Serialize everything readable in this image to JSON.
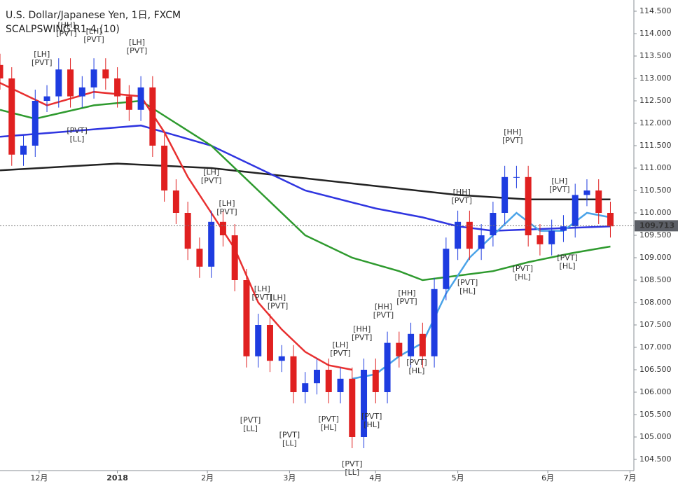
{
  "chart_data": {
    "type": "candlestick",
    "title": "U.S. Dollar/Japanese Yen, 1日, FXCM",
    "subtitle": "SCALPSWING R1-4 (10)",
    "up_color": "#1e3ce0",
    "down_color": "#e02020",
    "grid": true,
    "xlim": [
      0,
      162
    ],
    "xticks": [
      {
        "value": 10,
        "label": "12月"
      },
      {
        "value": 30,
        "label": "2018"
      },
      {
        "value": 53,
        "label": "2月"
      },
      {
        "value": 74,
        "label": "3月"
      },
      {
        "value": 96,
        "label": "4月"
      },
      {
        "value": 117,
        "label": "5月"
      },
      {
        "value": 140,
        "label": "6月"
      },
      {
        "value": 161,
        "label": "7月"
      }
    ],
    "ylim": [
      104.25,
      114.75
    ],
    "yticks": [
      {
        "value": 104.5,
        "label": "104.500"
      },
      {
        "value": 105,
        "label": "105.000"
      },
      {
        "value": 105.5,
        "label": "105.500"
      },
      {
        "value": 106,
        "label": "106.000"
      },
      {
        "value": 106.5,
        "label": "106.500"
      },
      {
        "value": 107,
        "label": "107.000"
      },
      {
        "value": 107.5,
        "label": "107.500"
      },
      {
        "value": 108,
        "label": "108.000"
      },
      {
        "value": 108.5,
        "label": "108.500"
      },
      {
        "value": 109,
        "label": "109.000"
      },
      {
        "value": 109.5,
        "label": "109.500"
      },
      {
        "value": 110,
        "label": "110.000"
      },
      {
        "value": 110.5,
        "label": "110.500"
      },
      {
        "value": 111,
        "label": "111.000"
      },
      {
        "value": 111.5,
        "label": "111.500"
      },
      {
        "value": 112,
        "label": "112.000"
      },
      {
        "value": 112.5,
        "label": "112.500"
      },
      {
        "value": 113,
        "label": "113.000"
      },
      {
        "value": 113.5,
        "label": "113.500"
      },
      {
        "value": 114,
        "label": "114.000"
      },
      {
        "value": 114.5,
        "label": "114.500"
      }
    ],
    "last_price": {
      "value": 109.713,
      "label": "109.713"
    },
    "candles": {
      "x": [
        0,
        3,
        6,
        9,
        12,
        15,
        18,
        21,
        24,
        27,
        30,
        33,
        36,
        39,
        42,
        45,
        48,
        51,
        54,
        57,
        60,
        63,
        66,
        69,
        72,
        75,
        78,
        81,
        84,
        87,
        90,
        93,
        96,
        99,
        102,
        105,
        108,
        111,
        114,
        117,
        120,
        123,
        126,
        129,
        132,
        135,
        138,
        141,
        144,
        147,
        150,
        153,
        156
      ],
      "open": [
        113.3,
        113.0,
        111.3,
        111.5,
        112.5,
        112.6,
        113.2,
        112.6,
        112.8,
        113.2,
        113.0,
        112.6,
        112.3,
        112.8,
        111.5,
        110.5,
        110.0,
        109.2,
        108.8,
        109.8,
        109.5,
        108.5,
        106.8,
        107.5,
        106.7,
        106.8,
        106.0,
        106.2,
        106.5,
        106.0,
        106.3,
        105.0,
        106.5,
        106.0,
        107.1,
        106.8,
        107.3,
        106.8,
        108.3,
        109.2,
        109.8,
        109.2,
        109.5,
        110.0,
        110.8,
        110.8,
        109.5,
        109.3,
        109.6,
        109.7,
        110.4,
        110.5,
        110.0
      ],
      "high": [
        113.55,
        113.25,
        111.75,
        112.75,
        112.85,
        113.45,
        113.45,
        113.05,
        113.45,
        113.45,
        113.25,
        112.85,
        113.05,
        113.05,
        111.75,
        110.75,
        110.25,
        109.45,
        110.05,
        110.05,
        109.75,
        108.75,
        107.75,
        107.75,
        107.05,
        107.05,
        106.45,
        106.75,
        106.75,
        106.55,
        106.55,
        106.75,
        106.75,
        107.35,
        107.35,
        107.55,
        107.55,
        108.55,
        109.45,
        110.05,
        110.05,
        109.75,
        110.25,
        111.05,
        111.05,
        111.05,
        109.75,
        109.85,
        109.95,
        110.65,
        110.75,
        110.75,
        110.25
      ],
      "low": [
        112.75,
        111.05,
        111.05,
        111.25,
        112.25,
        112.35,
        112.35,
        112.35,
        112.55,
        112.75,
        112.35,
        112.05,
        112.05,
        111.25,
        110.25,
        109.75,
        108.95,
        108.55,
        108.55,
        109.25,
        108.25,
        106.55,
        106.55,
        106.45,
        106.45,
        105.75,
        105.75,
        105.95,
        105.75,
        105.75,
        104.75,
        104.75,
        105.75,
        105.75,
        106.55,
        106.55,
        106.55,
        106.55,
        108.05,
        108.95,
        108.95,
        108.95,
        109.25,
        109.75,
        110.55,
        109.25,
        109.05,
        109.05,
        109.35,
        109.45,
        110.15,
        109.75,
        109.45
      ],
      "close": [
        113.0,
        111.3,
        111.5,
        112.5,
        112.6,
        113.2,
        112.6,
        112.8,
        113.2,
        113.0,
        112.6,
        112.3,
        112.8,
        111.5,
        110.5,
        110.0,
        109.2,
        108.8,
        109.8,
        109.5,
        108.5,
        106.8,
        107.5,
        106.7,
        106.8,
        106.0,
        106.2,
        106.5,
        106.0,
        106.3,
        105.0,
        106.5,
        106.0,
        107.1,
        106.8,
        107.3,
        106.8,
        108.3,
        109.2,
        109.8,
        109.2,
        109.5,
        110.0,
        110.8,
        110.8,
        109.5,
        109.3,
        109.6,
        109.7,
        110.4,
        110.5,
        110.0,
        109.7
      ]
    },
    "series": [
      {
        "color": "#222222",
        "x": [
          0,
          30,
          54,
          75,
          96,
          117,
          135,
          156
        ],
        "values": [
          110.95,
          111.1,
          111.0,
          110.8,
          110.6,
          110.4,
          110.3,
          110.3
        ]
      },
      {
        "color": "#2f35e0",
        "x": [
          0,
          15,
          36,
          54,
          66,
          78,
          96,
          108,
          117,
          126,
          156
        ],
        "values": [
          111.7,
          111.8,
          111.95,
          111.5,
          111.0,
          110.5,
          110.1,
          109.9,
          109.7,
          109.6,
          109.7
        ]
      },
      {
        "color": "#2e9a2e",
        "x": [
          0,
          9,
          24,
          36,
          45,
          54,
          66,
          78,
          90,
          102,
          108,
          117,
          126,
          135,
          146,
          156
        ],
        "values": [
          112.3,
          112.1,
          112.4,
          112.5,
          112.0,
          111.5,
          110.5,
          109.5,
          109.0,
          108.7,
          108.5,
          108.6,
          108.7,
          108.9,
          109.1,
          109.25
        ]
      },
      {
        "color": "#e83030",
        "x": [
          0,
          12,
          24,
          36,
          42,
          48,
          54,
          60,
          66,
          72,
          78,
          84,
          90
        ],
        "values": [
          112.9,
          112.4,
          112.7,
          112.6,
          111.8,
          110.8,
          110.0,
          109.2,
          108.0,
          107.4,
          106.9,
          106.6,
          106.5
        ]
      },
      {
        "color": "#4aa3e8",
        "x": [
          90,
          96,
          102,
          108,
          114,
          120,
          126,
          132,
          138,
          144,
          150,
          156
        ],
        "values": [
          106.3,
          106.4,
          106.8,
          107.1,
          108.2,
          109.0,
          109.5,
          110.0,
          109.6,
          109.6,
          110.0,
          109.9
        ]
      }
    ],
    "annotations": [
      {
        "lines": [
          "[LH]",
          "[PVT]"
        ],
        "x": 10.7,
        "y": 113.53,
        "color": "#8b1a1a"
      },
      {
        "lines": [
          "[HH]",
          "[PVT]"
        ],
        "x": 17,
        "y": 114.18,
        "color": "#8b1a1a"
      },
      {
        "lines": [
          "[LH]",
          "[PVT]"
        ],
        "x": 24,
        "y": 114.05,
        "color": "#8b1a1a"
      },
      {
        "lines": [
          "[LH]",
          "[PVT]"
        ],
        "x": 35,
        "y": 113.8,
        "color": "#8b1a1a"
      },
      {
        "lines": [
          "[LH]",
          "[PVT]"
        ],
        "x": 54,
        "y": 110.9,
        "color": "#8b1a1a"
      },
      {
        "lines": [
          "[LH]",
          "[PVT]"
        ],
        "x": 58,
        "y": 110.2,
        "color": "#8b1a1a"
      },
      {
        "lines": [
          "[LH]",
          "[PVT]"
        ],
        "x": 67,
        "y": 108.3,
        "color": "#8b1a1a"
      },
      {
        "lines": [
          "[LH]",
          "[PVT]"
        ],
        "x": 71,
        "y": 108.1,
        "color": "#8b1a1a"
      },
      {
        "lines": [
          "[LH]",
          "[PVT]"
        ],
        "x": 87,
        "y": 107.05,
        "color": "#8b1a1a"
      },
      {
        "lines": [
          "[HH]",
          "[PVT]"
        ],
        "x": 92.5,
        "y": 107.4,
        "color": "#8b1a1a"
      },
      {
        "lines": [
          "[HH]",
          "[PVT]"
        ],
        "x": 98,
        "y": 107.9,
        "color": "#8b1a1a"
      },
      {
        "lines": [
          "[HH]",
          "[PVT]"
        ],
        "x": 104,
        "y": 108.2,
        "color": "#8b1a1a"
      },
      {
        "lines": [
          "[HH]",
          "[PVT]"
        ],
        "x": 118,
        "y": 110.45,
        "color": "#8b1a1a"
      },
      {
        "lines": [
          "[HH]",
          "[PVT]"
        ],
        "x": 131,
        "y": 111.8,
        "color": "#8b1a1a"
      },
      {
        "lines": [
          "[LH]",
          "[PVT]"
        ],
        "x": 143,
        "y": 110.7,
        "color": "#8b1a1a"
      },
      {
        "lines": [
          "[PVT]",
          "[LL]"
        ],
        "x": 19.7,
        "y": 111.83,
        "color": "#1f8a1f"
      },
      {
        "lines": [
          "[PVT]",
          "[LL]"
        ],
        "x": 64,
        "y": 105.37,
        "color": "#1f8a1f"
      },
      {
        "lines": [
          "[PVT]",
          "[LL]"
        ],
        "x": 74,
        "y": 105.04,
        "color": "#1f8a1f"
      },
      {
        "lines": [
          "[PVT]",
          "[HL]"
        ],
        "x": 84,
        "y": 105.39,
        "color": "#1f8a1f"
      },
      {
        "lines": [
          "[PVT]",
          "[LL]"
        ],
        "x": 90,
        "y": 104.39,
        "color": "#1f8a1f"
      },
      {
        "lines": [
          "[PVT]",
          "[HL]"
        ],
        "x": 95,
        "y": 105.45,
        "color": "#1f8a1f"
      },
      {
        "lines": [
          "[PVT]",
          "[HL]"
        ],
        "x": 106.5,
        "y": 106.66,
        "color": "#1f8a1f"
      },
      {
        "lines": [
          "[PVT]",
          "[HL]"
        ],
        "x": 119.5,
        "y": 108.44,
        "color": "#1f8a1f"
      },
      {
        "lines": [
          "[PVT]",
          "[HL]"
        ],
        "x": 133.6,
        "y": 108.75,
        "color": "#1f8a1f"
      },
      {
        "lines": [
          "[PVT]",
          "[HL]"
        ],
        "x": 145,
        "y": 108.99,
        "color": "#1f8a1f"
      }
    ]
  }
}
